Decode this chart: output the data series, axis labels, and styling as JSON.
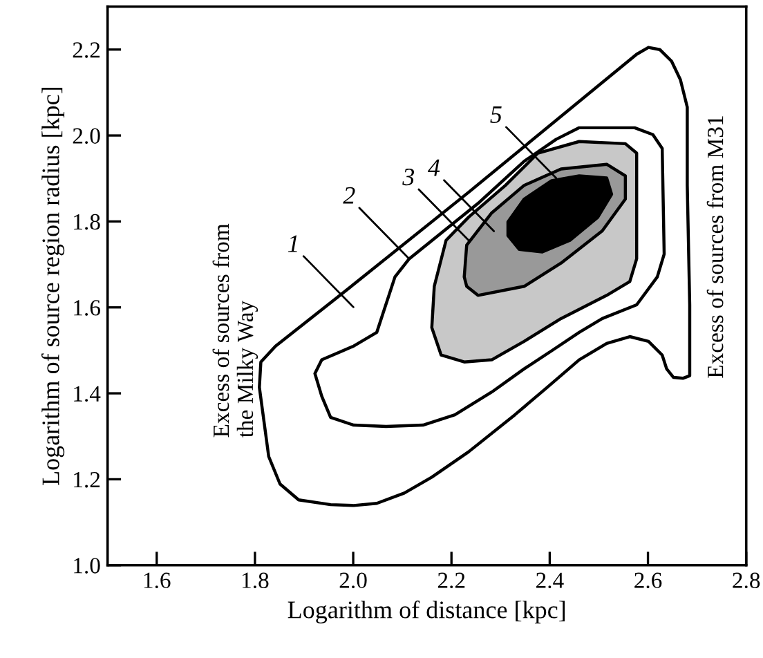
{
  "chart_data": {
    "type": "area",
    "xlabel": "Logarithm of distance [kpc]",
    "ylabel": "Logarithm of source region radius [kpc]",
    "xlim": [
      1.5,
      2.8
    ],
    "ylim": [
      1.0,
      2.3
    ],
    "xticks": [
      {
        "value": 1.6,
        "label": "1.6"
      },
      {
        "value": 1.8,
        "label": "1.8"
      },
      {
        "value": 2.0,
        "label": "2.0"
      },
      {
        "value": 2.2,
        "label": "2.2"
      },
      {
        "value": 2.4,
        "label": "2.4"
      },
      {
        "value": 2.6,
        "label": "2.6"
      },
      {
        "value": 2.8,
        "label": "2.8"
      }
    ],
    "yticks": [
      {
        "value": 1.0,
        "label": "1.0"
      },
      {
        "value": 1.2,
        "label": "1.2"
      },
      {
        "value": 1.4,
        "label": "1.4"
      },
      {
        "value": 1.6,
        "label": "1.6"
      },
      {
        "value": 1.8,
        "label": "1.8"
      },
      {
        "value": 2.0,
        "label": "2.0"
      },
      {
        "value": 2.2,
        "label": "2.2"
      }
    ],
    "grid": false,
    "legend": false,
    "series": [
      {
        "color": "#ffffff",
        "x": [
          2.601,
          2.577,
          2.235,
          1.973,
          1.842,
          1.812,
          1.809,
          1.828,
          1.851,
          1.889,
          1.954,
          2.001,
          2.048,
          2.104,
          2.16,
          2.235,
          2.329,
          2.395,
          2.46,
          2.516,
          2.563,
          2.601,
          2.629,
          2.638,
          2.652,
          2.671,
          2.685,
          2.685,
          2.68,
          2.68,
          2.666,
          2.648,
          2.624
        ],
        "values": [
          2.205,
          2.189,
          1.868,
          1.628,
          1.51,
          1.473,
          1.414,
          1.253,
          1.189,
          1.152,
          1.141,
          1.139,
          1.144,
          1.168,
          1.205,
          1.264,
          1.35,
          1.414,
          1.478,
          1.516,
          1.532,
          1.521,
          1.489,
          1.457,
          1.437,
          1.435,
          1.441,
          1.606,
          1.884,
          2.066,
          2.13,
          2.173,
          2.2
        ]
      },
      {
        "color": "#ffffff",
        "x": [
          2.114,
          2.254,
          2.348,
          2.413,
          2.46,
          2.573,
          2.61,
          2.629,
          2.633,
          2.619,
          2.577,
          2.507,
          2.46,
          2.404,
          2.348,
          2.282,
          2.207,
          2.142,
          2.067,
          2.001,
          1.954,
          1.936,
          1.922,
          1.936,
          2.001,
          2.048,
          2.085
        ],
        "values": [
          1.713,
          1.842,
          1.94,
          1.991,
          2.018,
          2.018,
          2.002,
          1.97,
          1.724,
          1.671,
          1.606,
          1.574,
          1.542,
          1.499,
          1.457,
          1.403,
          1.35,
          1.326,
          1.323,
          1.326,
          1.344,
          1.393,
          1.446,
          1.478,
          1.51,
          1.542,
          1.671
        ]
      },
      {
        "color": "#c8c8c8",
        "x": [
          2.189,
          2.235,
          2.31,
          2.376,
          2.46,
          2.554,
          2.577,
          2.577,
          2.563,
          2.516,
          2.423,
          2.348,
          2.282,
          2.226,
          2.179,
          2.16,
          2.165
        ],
        "values": [
          1.756,
          1.81,
          1.884,
          1.959,
          1.986,
          1.981,
          1.959,
          1.713,
          1.66,
          1.628,
          1.574,
          1.521,
          1.478,
          1.473,
          1.489,
          1.553,
          1.649
        ]
      },
      {
        "color": "#999999",
        "x": [
          2.226,
          2.231,
          2.282,
          2.348,
          2.423,
          2.516,
          2.554,
          2.554,
          2.507,
          2.423,
          2.348,
          2.254,
          2.231
        ],
        "values": [
          1.671,
          1.745,
          1.82,
          1.884,
          1.922,
          1.933,
          1.906,
          1.852,
          1.778,
          1.703,
          1.649,
          1.628,
          1.649
        ]
      },
      {
        "color": "#000000",
        "x": [
          2.315,
          2.348,
          2.404,
          2.46,
          2.516,
          2.526,
          2.498,
          2.441,
          2.385,
          2.338,
          2.315
        ],
        "values": [
          1.799,
          1.852,
          1.895,
          1.906,
          1.901,
          1.863,
          1.81,
          1.756,
          1.729,
          1.735,
          1.767
        ]
      }
    ],
    "annotations": [
      "1",
      {
        "text": "2",
        "x": 2.114,
        "y": 1.713
      },
      {
        "text": "3",
        "x": 2.235,
        "y": 1.756
      },
      "4",
      {
        "text": "5",
        "x": 2.413,
        "y": 1.901
      },
      "Excess of sources from\nthe Milky Way",
      "Excess of sources from M31"
    ]
  }
}
